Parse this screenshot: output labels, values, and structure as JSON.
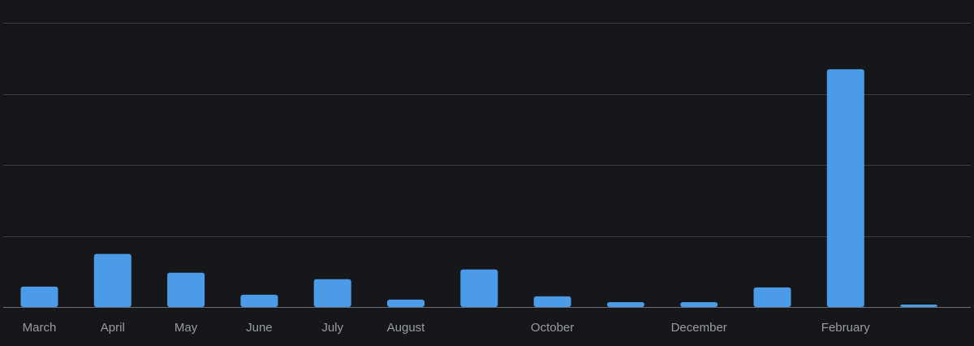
{
  "chart_data": {
    "type": "bar",
    "categories": [
      "March",
      "April",
      "May",
      "June",
      "July",
      "August",
      "",
      "October",
      "",
      "December",
      "",
      "February",
      ""
    ],
    "values": [
      25,
      65,
      42,
      15,
      34,
      9,
      46,
      13,
      6,
      6,
      24,
      291,
      3
    ],
    "ylim": [
      0,
      348
    ],
    "grid": true,
    "gridlines": [
      0,
      87,
      174,
      261,
      348
    ],
    "colors": {
      "background": "#16171b",
      "bar": "#4c9be8",
      "grid": "#3a3c43",
      "axis": "#6b6e76",
      "label": "#9a9ca3"
    }
  }
}
